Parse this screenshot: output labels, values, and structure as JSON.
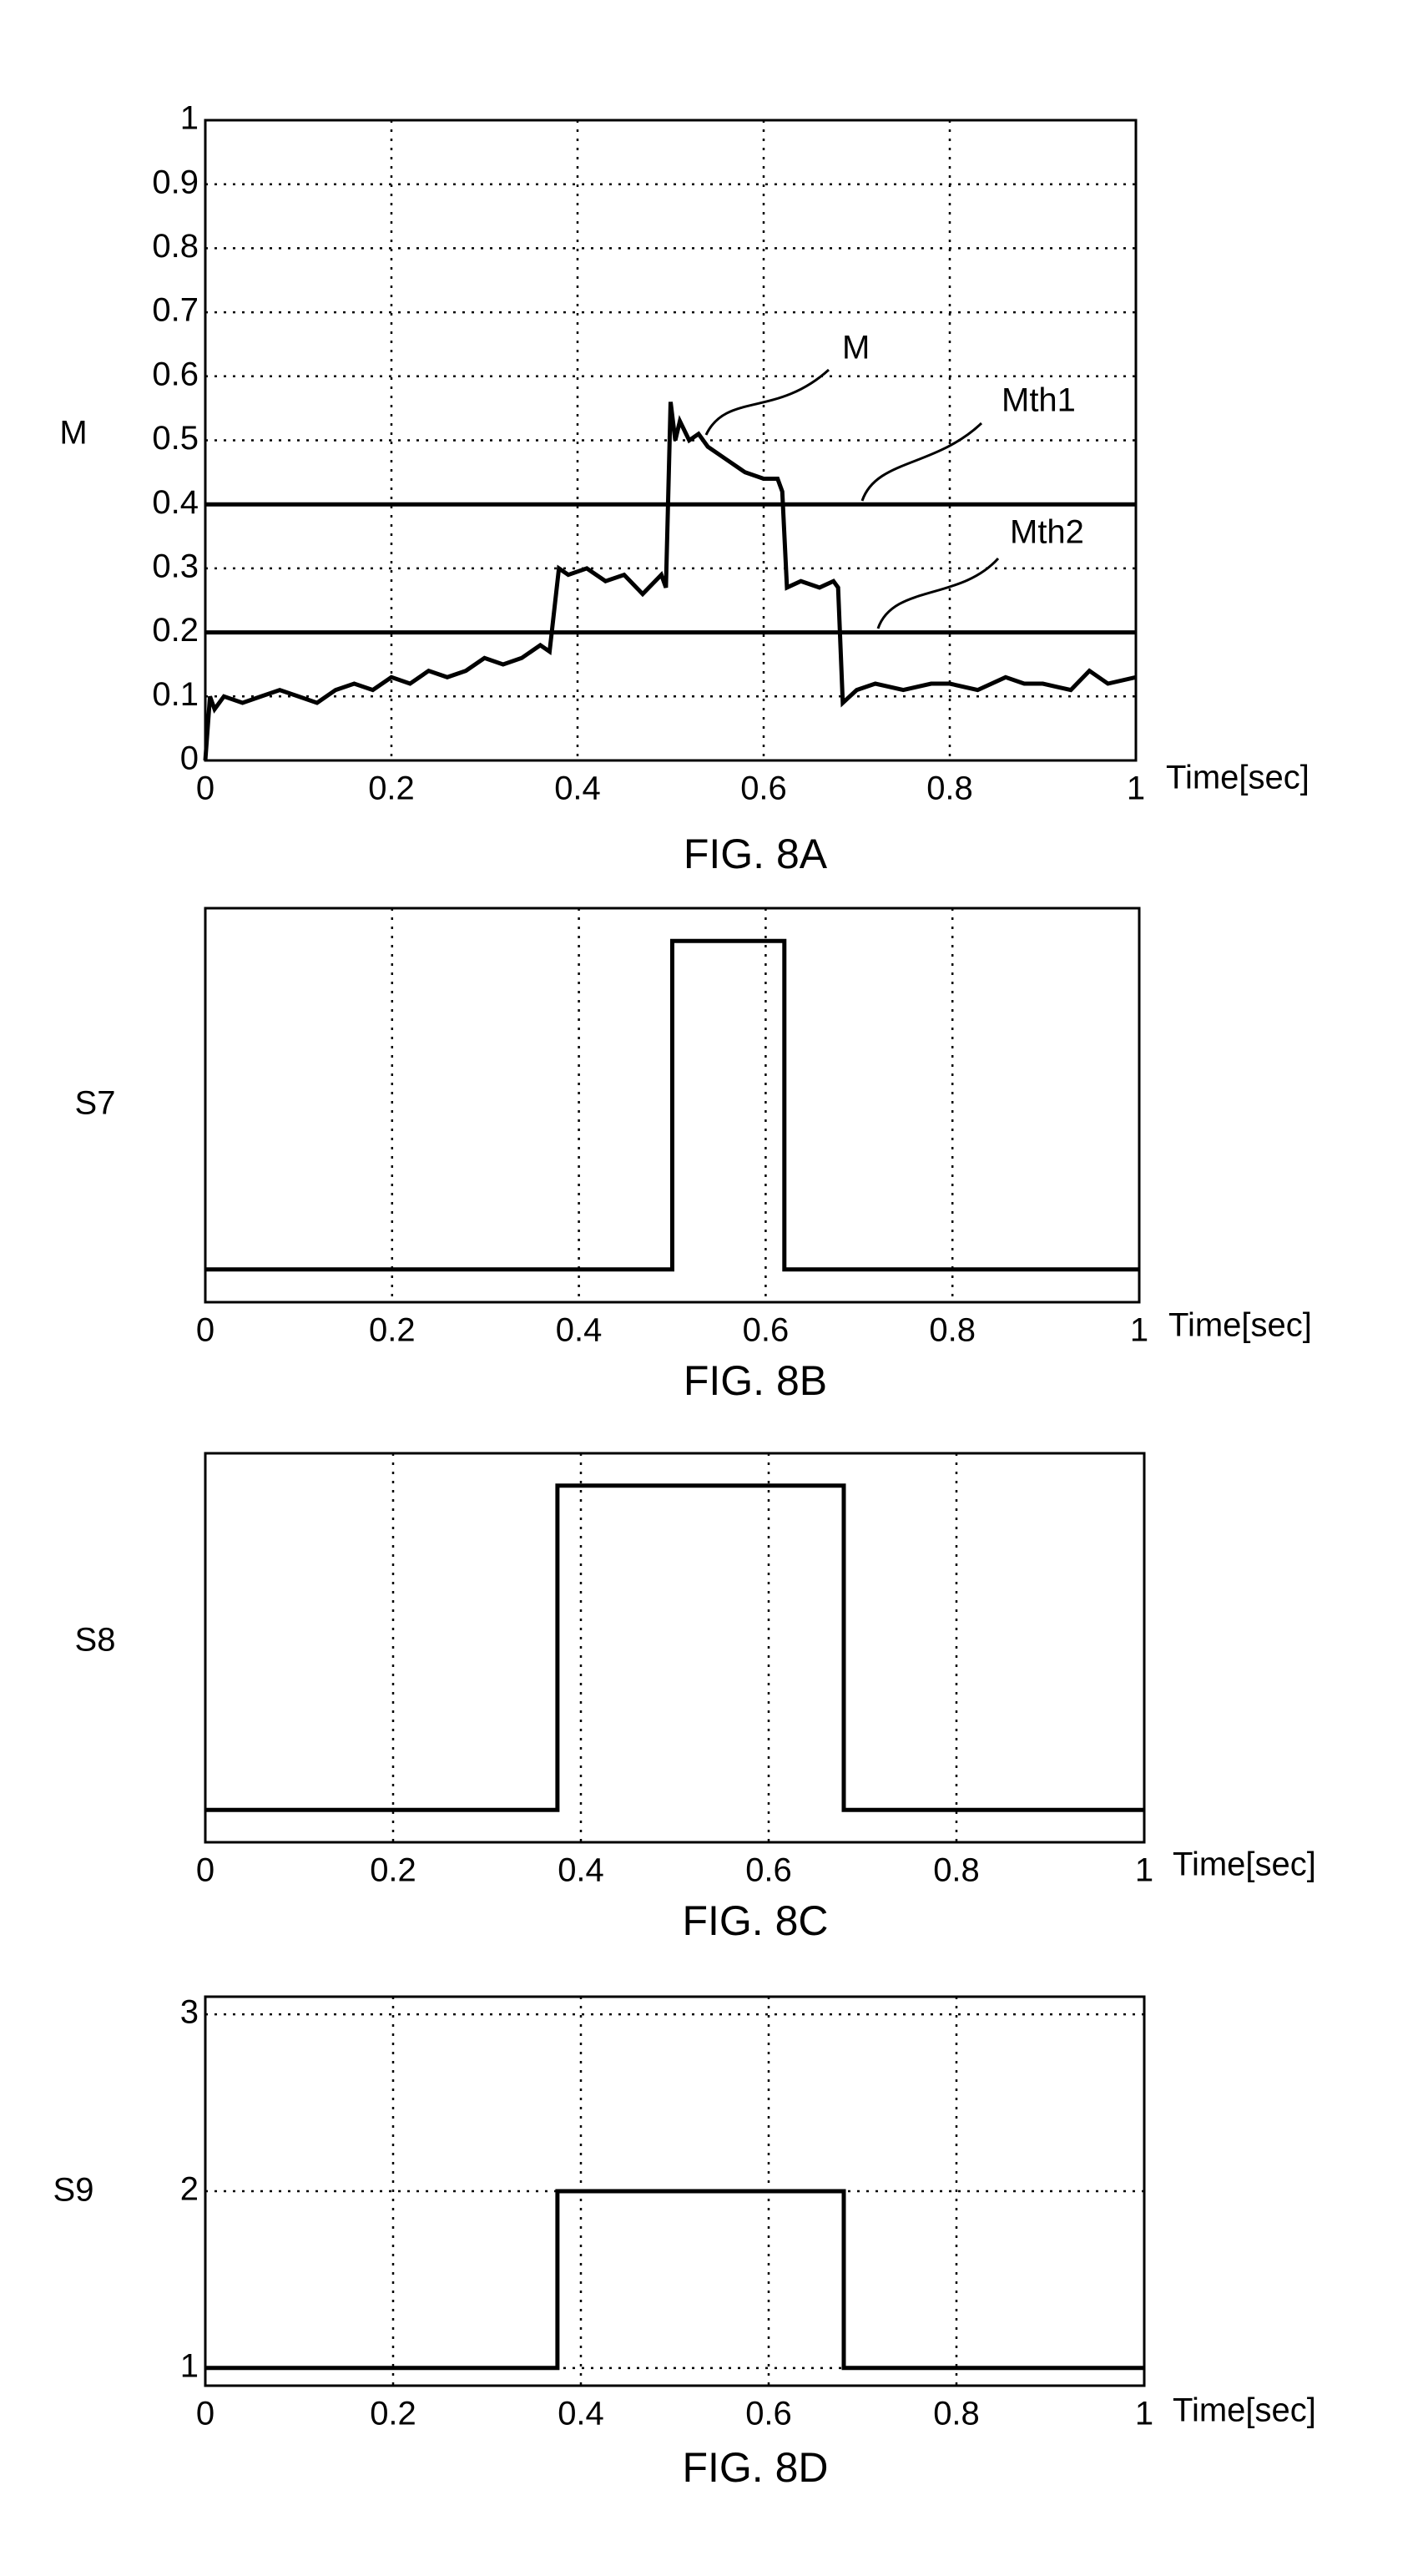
{
  "chart_data": [
    {
      "type": "line",
      "caption": "FIG. 8A",
      "ylabel": "M",
      "xlabel": "Time[sec]",
      "grid": true,
      "xlim": [
        0,
        1
      ],
      "xticks": [
        0,
        0.2,
        0.4,
        0.6,
        0.8,
        1
      ],
      "ylim": [
        0,
        1
      ],
      "yticks": [
        0,
        0.1,
        0.2,
        0.3,
        0.4,
        0.5,
        0.6,
        0.7,
        0.8,
        0.9,
        1
      ],
      "annotations": [
        {
          "text": "M"
        },
        {
          "text": "Mth1"
        },
        {
          "text": "Mth2"
        }
      ],
      "series": [
        {
          "name": "M",
          "color": "#000000",
          "x": [
            0,
            0.005,
            0.01,
            0.02,
            0.04,
            0.06,
            0.08,
            0.1,
            0.12,
            0.14,
            0.16,
            0.18,
            0.2,
            0.22,
            0.24,
            0.26,
            0.28,
            0.3,
            0.32,
            0.34,
            0.36,
            0.37,
            0.38,
            0.39,
            0.41,
            0.43,
            0.45,
            0.47,
            0.49,
            0.495,
            0.5,
            0.505,
            0.51,
            0.52,
            0.53,
            0.54,
            0.56,
            0.58,
            0.6,
            0.615,
            0.62,
            0.625,
            0.64,
            0.66,
            0.675,
            0.68,
            0.685,
            0.7,
            0.72,
            0.75,
            0.78,
            0.8,
            0.83,
            0.86,
            0.88,
            0.9,
            0.93,
            0.95,
            0.97,
            1
          ],
          "values": [
            0,
            0.1,
            0.08,
            0.1,
            0.09,
            0.1,
            0.11,
            0.1,
            0.09,
            0.11,
            0.12,
            0.11,
            0.13,
            0.12,
            0.14,
            0.13,
            0.14,
            0.16,
            0.15,
            0.16,
            0.18,
            0.17,
            0.3,
            0.29,
            0.3,
            0.28,
            0.29,
            0.26,
            0.29,
            0.27,
            0.56,
            0.5,
            0.53,
            0.5,
            0.51,
            0.49,
            0.47,
            0.45,
            0.44,
            0.44,
            0.42,
            0.27,
            0.28,
            0.27,
            0.28,
            0.27,
            0.09,
            0.11,
            0.12,
            0.11,
            0.12,
            0.12,
            0.11,
            0.13,
            0.12,
            0.12,
            0.11,
            0.14,
            0.12,
            0.13
          ]
        },
        {
          "name": "Mth1",
          "color": "#000000",
          "x": [
            0,
            1
          ],
          "values": [
            0.4,
            0.4
          ]
        },
        {
          "name": "Mth2",
          "color": "#000000",
          "x": [
            0,
            1
          ],
          "values": [
            0.2,
            0.2
          ]
        }
      ]
    },
    {
      "type": "line",
      "caption": "FIG. 8B",
      "ylabel": "S7",
      "xlabel": "Time[sec]",
      "grid": true,
      "xlim": [
        0,
        1
      ],
      "xticks": [
        0,
        0.2,
        0.4,
        0.6,
        0.8,
        1
      ],
      "ylim": [
        -0.1,
        1.1
      ],
      "series": [
        {
          "name": "S7",
          "color": "#000000",
          "x": [
            0,
            0.5,
            0.5,
            0.62,
            0.62,
            1
          ],
          "values": [
            0,
            0,
            1,
            1,
            0,
            0
          ]
        }
      ]
    },
    {
      "type": "line",
      "caption": "FIG. 8C",
      "ylabel": "S8",
      "xlabel": "Time[sec]",
      "grid": true,
      "xlim": [
        0,
        1
      ],
      "xticks": [
        0,
        0.2,
        0.4,
        0.6,
        0.8,
        1
      ],
      "ylim": [
        -0.1,
        1.1
      ],
      "series": [
        {
          "name": "S8",
          "color": "#000000",
          "x": [
            0,
            0.375,
            0.375,
            0.68,
            0.68,
            1
          ],
          "values": [
            0,
            0,
            1,
            1,
            0,
            0
          ]
        }
      ]
    },
    {
      "type": "line",
      "caption": "FIG. 8D",
      "ylabel": "S9",
      "xlabel": "Time[sec]",
      "grid": true,
      "xlim": [
        0,
        1
      ],
      "xticks": [
        0,
        0.2,
        0.4,
        0.6,
        0.8,
        1
      ],
      "ylim": [
        0.9,
        3.1
      ],
      "yticks": [
        1,
        2,
        3
      ],
      "series": [
        {
          "name": "S9",
          "color": "#000000",
          "x": [
            0,
            0.375,
            0.375,
            0.68,
            0.68,
            1
          ],
          "values": [
            1,
            1,
            2,
            2,
            1,
            1
          ]
        }
      ]
    }
  ]
}
